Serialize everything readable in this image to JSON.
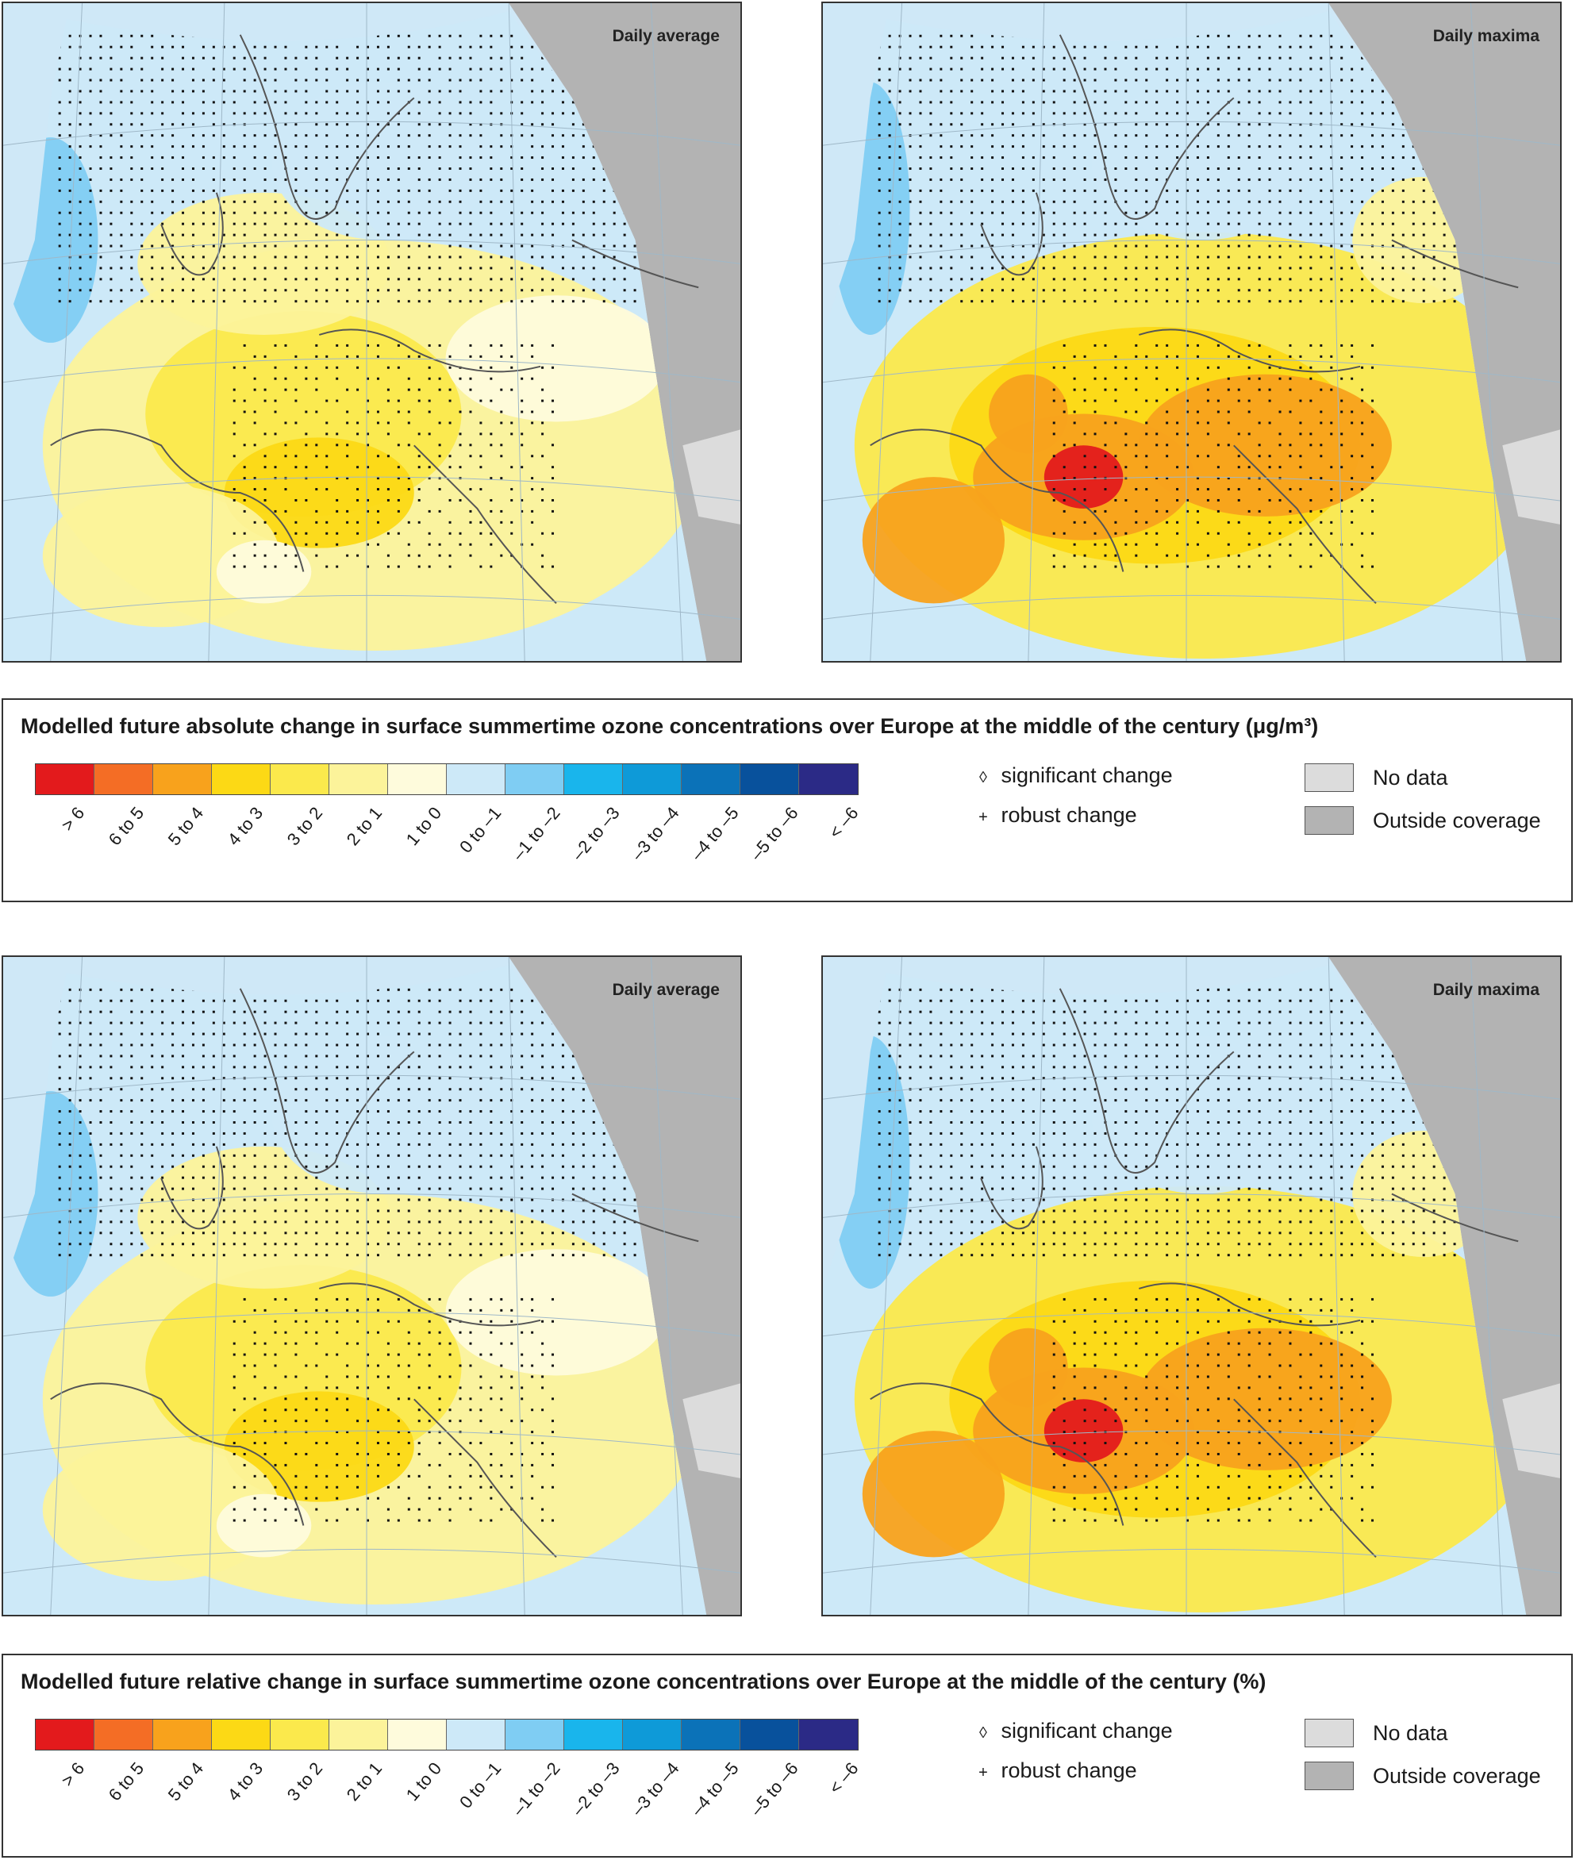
{
  "panels": [
    {
      "title": "Daily average",
      "variant": "average"
    },
    {
      "title": "Daily maxima",
      "variant": "maxima"
    },
    {
      "title": "Daily average",
      "variant": "average"
    },
    {
      "title": "Daily maxima",
      "variant": "maxima"
    }
  ],
  "legends": [
    {
      "title": "Modelled future absolute change in surface summertime ozone concentrations over Europe at the middle of the century (μg/m³)"
    },
    {
      "title": "Modelled future relative change in surface summertime ozone concentrations over Europe at the middle of the century (%)"
    }
  ],
  "classes": [
    {
      "label": "> 6",
      "color": "#e31a1c"
    },
    {
      "label": "6 to 5",
      "color": "#f46d25"
    },
    {
      "label": "5 to 4",
      "color": "#f8a21c"
    },
    {
      "label": "4 to 3",
      "color": "#fcd915"
    },
    {
      "label": "3 to 2",
      "color": "#fbe94c"
    },
    {
      "label": "2 to 1",
      "color": "#fcf39a"
    },
    {
      "label": "1 to 0",
      "color": "#fefbdc"
    },
    {
      "label": "0 to –1",
      "color": "#cde9f8"
    },
    {
      "label": "–1 to –2",
      "color": "#7fcdf3"
    },
    {
      "label": "–2 to –3",
      "color": "#19b5ec"
    },
    {
      "label": "–3 to –4",
      "color": "#0e9ad8"
    },
    {
      "label": "–4 to –5",
      "color": "#0b72b8"
    },
    {
      "label": "–5 to –6",
      "color": "#08519c"
    },
    {
      "label": "< –6",
      "color": "#2b2a86"
    }
  ],
  "symbols": {
    "significant": {
      "glyph": "◊",
      "label": "significant change"
    },
    "robust": {
      "glyph": "+",
      "label": "robust change"
    }
  },
  "coverage": {
    "no_data": {
      "label": "No data",
      "color": "#dcdcdc"
    },
    "outside": {
      "label": "Outside coverage",
      "color": "#b3b3b3"
    }
  }
}
